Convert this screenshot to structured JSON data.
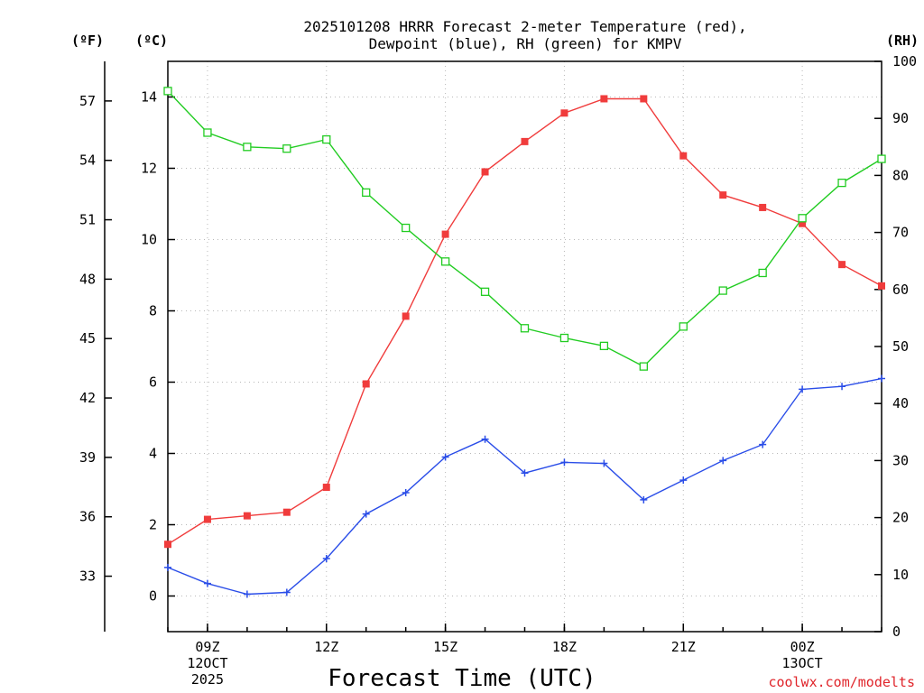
{
  "chart_data": {
    "type": "line",
    "title_lines": [
      "2025101208 HRRR Forecast 2-meter Temperature (red),",
      "Dewpoint (blue), RH (green) for KMPV"
    ],
    "xlabel": "Forecast Time (UTC)",
    "credit": "coolwx.com/modelts",
    "unit_labels": {
      "fahrenheit": "(ºF)",
      "celsius": "(ºC)",
      "rh": "(RH)"
    },
    "x": [
      8,
      9,
      10,
      11,
      12,
      13,
      14,
      15,
      16,
      17,
      18,
      19,
      20,
      21,
      22,
      23,
      24,
      25,
      26
    ],
    "xlim": [
      8,
      26
    ],
    "x_ticks": [
      {
        "x": 9,
        "lines": [
          "09Z",
          "12OCT",
          "2025"
        ]
      },
      {
        "x": 12,
        "lines": [
          "12Z"
        ]
      },
      {
        "x": 15,
        "lines": [
          "15Z"
        ]
      },
      {
        "x": 18,
        "lines": [
          "18Z"
        ]
      },
      {
        "x": 21,
        "lines": [
          "21Z"
        ]
      },
      {
        "x": 24,
        "lines": [
          "00Z",
          "13OCT"
        ]
      }
    ],
    "y_left": {
      "label": "ºC",
      "ylim": [
        -1,
        15
      ],
      "ticks": [
        0,
        2,
        4,
        6,
        8,
        10,
        12,
        14
      ]
    },
    "y_far_left": {
      "label": "ºF",
      "ticks": [
        33,
        36,
        39,
        42,
        45,
        48,
        51,
        54,
        57
      ]
    },
    "y_right": {
      "label": "RH",
      "ylim": [
        0,
        100
      ],
      "ticks": [
        0,
        10,
        20,
        30,
        40,
        50,
        60,
        70,
        80,
        90,
        100
      ]
    },
    "series": [
      {
        "name": "Temperature",
        "axis": "celsius",
        "color": "#f03c3c",
        "marker": "filled-square",
        "values": [
          1.45,
          2.15,
          2.25,
          2.35,
          3.05,
          5.95,
          7.85,
          10.15,
          11.9,
          12.75,
          13.55,
          13.95,
          13.95,
          12.35,
          11.25,
          10.9,
          10.45,
          9.3,
          8.7
        ]
      },
      {
        "name": "Dewpoint",
        "axis": "celsius",
        "color": "#2a4de8",
        "marker": "plus",
        "values": [
          0.8,
          0.35,
          0.05,
          0.1,
          1.05,
          2.3,
          2.9,
          3.9,
          4.4,
          3.45,
          3.75,
          3.72,
          2.7,
          3.25,
          3.8,
          4.25,
          5.8,
          5.88,
          6.1
        ]
      },
      {
        "name": "RH",
        "axis": "rh",
        "color": "#22cc22",
        "marker": "open-square",
        "values": [
          94.8,
          87.5,
          85.0,
          84.7,
          86.3,
          77.0,
          70.8,
          64.9,
          59.6,
          53.2,
          51.5,
          50.1,
          46.5,
          53.5,
          59.8,
          62.9,
          72.5,
          78.7,
          82.9
        ]
      }
    ]
  }
}
